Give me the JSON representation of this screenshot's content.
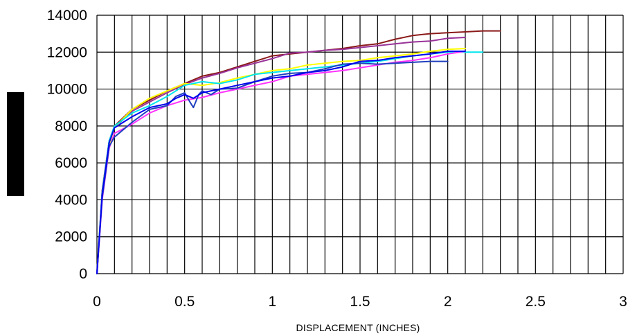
{
  "chart_data": {
    "type": "line",
    "title": "",
    "xlabel": "DISPLACEMENT (INCHES)",
    "ylabel": "",
    "xlim": [
      0,
      3
    ],
    "ylim": [
      0,
      14000
    ],
    "x_ticks": [
      "0",
      "0.5",
      "1",
      "1.5",
      "2",
      "2.5",
      "3"
    ],
    "y_ticks": [
      "0",
      "2000",
      "4000",
      "6000",
      "8000",
      "10000",
      "12000",
      "14000"
    ],
    "x_tick_values": [
      0,
      0.5,
      1,
      1.5,
      2,
      2.5,
      3
    ],
    "y_tick_values": [
      0,
      2000,
      4000,
      6000,
      8000,
      10000,
      12000,
      14000
    ],
    "grid": true,
    "minor_x_step": 0.1,
    "y_axis_label_redacted": true,
    "series": [
      {
        "color": "#8b1a1a",
        "points": [
          [
            0,
            0
          ],
          [
            0.03,
            4500
          ],
          [
            0.07,
            7200
          ],
          [
            0.1,
            8000
          ],
          [
            0.2,
            8900
          ],
          [
            0.3,
            9400
          ],
          [
            0.4,
            9900
          ],
          [
            0.5,
            10300
          ],
          [
            0.6,
            10700
          ],
          [
            0.7,
            10900
          ],
          [
            0.8,
            11200
          ],
          [
            0.9,
            11500
          ],
          [
            1.0,
            11800
          ],
          [
            1.1,
            11900
          ],
          [
            1.2,
            12000
          ],
          [
            1.3,
            12100
          ],
          [
            1.4,
            12200
          ],
          [
            1.5,
            12350
          ],
          [
            1.6,
            12450
          ],
          [
            1.7,
            12700
          ],
          [
            1.8,
            12900
          ],
          [
            1.9,
            13000
          ],
          [
            2.0,
            13050
          ],
          [
            2.1,
            13100
          ],
          [
            2.2,
            13150
          ],
          [
            2.3,
            13150
          ]
        ]
      },
      {
        "color": "#993399",
        "points": [
          [
            0,
            0
          ],
          [
            0.03,
            4200
          ],
          [
            0.07,
            7100
          ],
          [
            0.1,
            7900
          ],
          [
            0.2,
            8800
          ],
          [
            0.3,
            9300
          ],
          [
            0.4,
            9800
          ],
          [
            0.5,
            10250
          ],
          [
            0.6,
            10600
          ],
          [
            0.7,
            10850
          ],
          [
            0.8,
            11150
          ],
          [
            0.9,
            11400
          ],
          [
            1.0,
            11650
          ],
          [
            1.1,
            11950
          ],
          [
            1.2,
            12000
          ],
          [
            1.3,
            12100
          ],
          [
            1.4,
            12150
          ],
          [
            1.5,
            12250
          ],
          [
            1.6,
            12350
          ],
          [
            1.7,
            12450
          ],
          [
            1.8,
            12550
          ],
          [
            1.9,
            12600
          ],
          [
            2.0,
            12750
          ],
          [
            2.1,
            12800
          ]
        ]
      },
      {
        "color": "#ffff00",
        "points": [
          [
            0,
            0
          ],
          [
            0.03,
            4300
          ],
          [
            0.07,
            7000
          ],
          [
            0.1,
            7900
          ],
          [
            0.2,
            8900
          ],
          [
            0.3,
            9500
          ],
          [
            0.4,
            9900
          ],
          [
            0.5,
            10300
          ],
          [
            0.6,
            10200
          ],
          [
            0.7,
            10350
          ],
          [
            0.8,
            10600
          ],
          [
            0.9,
            10800
          ],
          [
            1.0,
            11000
          ],
          [
            1.1,
            11100
          ],
          [
            1.2,
            11300
          ],
          [
            1.3,
            11400
          ],
          [
            1.4,
            11500
          ],
          [
            1.5,
            11550
          ],
          [
            1.6,
            11700
          ],
          [
            1.7,
            11800
          ],
          [
            1.8,
            11900
          ],
          [
            1.9,
            12050
          ],
          [
            2.0,
            12150
          ],
          [
            2.1,
            12200
          ]
        ]
      },
      {
        "color": "#00e5ee",
        "points": [
          [
            0,
            0
          ],
          [
            0.03,
            4400
          ],
          [
            0.07,
            7200
          ],
          [
            0.1,
            8000
          ],
          [
            0.2,
            8700
          ],
          [
            0.3,
            9100
          ],
          [
            0.4,
            9600
          ],
          [
            0.5,
            10200
          ],
          [
            0.6,
            10400
          ],
          [
            0.7,
            10300
          ],
          [
            0.8,
            10500
          ],
          [
            0.9,
            10800
          ],
          [
            1.0,
            10900
          ],
          [
            1.1,
            11000
          ],
          [
            1.2,
            11100
          ],
          [
            1.3,
            11200
          ],
          [
            1.4,
            11300
          ],
          [
            1.5,
            11400
          ],
          [
            1.6,
            11500
          ],
          [
            1.7,
            11650
          ],
          [
            1.8,
            11800
          ],
          [
            1.9,
            11900
          ],
          [
            2.0,
            12000
          ],
          [
            2.1,
            12000
          ],
          [
            2.2,
            12000
          ]
        ]
      },
      {
        "color": "#ff33ff",
        "points": [
          [
            0,
            0
          ],
          [
            0.03,
            4000
          ],
          [
            0.07,
            6800
          ],
          [
            0.1,
            7600
          ],
          [
            0.2,
            8100
          ],
          [
            0.3,
            8700
          ],
          [
            0.4,
            9100
          ],
          [
            0.5,
            9400
          ],
          [
            0.6,
            9550
          ],
          [
            0.7,
            9800
          ],
          [
            0.8,
            10000
          ],
          [
            0.9,
            10200
          ],
          [
            1.0,
            10400
          ],
          [
            1.1,
            10700
          ],
          [
            1.2,
            10800
          ],
          [
            1.3,
            10900
          ],
          [
            1.4,
            11000
          ],
          [
            1.5,
            11150
          ],
          [
            1.6,
            11300
          ],
          [
            1.7,
            11450
          ],
          [
            1.8,
            11550
          ],
          [
            1.9,
            11700
          ],
          [
            2.0,
            11900
          ],
          [
            2.1,
            12050
          ]
        ]
      },
      {
        "color": "#1f3fbf",
        "points": [
          [
            0,
            0
          ],
          [
            0.03,
            4100
          ],
          [
            0.07,
            6900
          ],
          [
            0.1,
            7400
          ],
          [
            0.15,
            7800
          ],
          [
            0.2,
            8200
          ],
          [
            0.3,
            8900
          ],
          [
            0.4,
            9100
          ],
          [
            0.45,
            9600
          ],
          [
            0.5,
            9800
          ],
          [
            0.53,
            9300
          ],
          [
            0.55,
            9000
          ],
          [
            0.58,
            9700
          ],
          [
            0.6,
            9900
          ],
          [
            0.65,
            9700
          ],
          [
            0.7,
            10000
          ],
          [
            0.8,
            10050
          ],
          [
            0.9,
            10400
          ],
          [
            1.0,
            10700
          ],
          [
            1.1,
            10850
          ],
          [
            1.2,
            10900
          ],
          [
            1.3,
            11100
          ],
          [
            1.4,
            11350
          ],
          [
            1.5,
            11400
          ],
          [
            1.6,
            11350
          ],
          [
            1.7,
            11400
          ],
          [
            1.8,
            11450
          ],
          [
            1.9,
            11500
          ],
          [
            2.0,
            11500
          ]
        ]
      },
      {
        "color": "#0000ee",
        "points": [
          [
            0,
            0
          ],
          [
            0.03,
            4300
          ],
          [
            0.07,
            7100
          ],
          [
            0.1,
            7900
          ],
          [
            0.2,
            8500
          ],
          [
            0.3,
            9000
          ],
          [
            0.4,
            9200
          ],
          [
            0.45,
            9500
          ],
          [
            0.5,
            9700
          ],
          [
            0.55,
            9500
          ],
          [
            0.6,
            9800
          ],
          [
            0.7,
            10000
          ],
          [
            0.8,
            10200
          ],
          [
            0.9,
            10400
          ],
          [
            1.0,
            10600
          ],
          [
            1.1,
            10700
          ],
          [
            1.2,
            10900
          ],
          [
            1.3,
            11000
          ],
          [
            1.4,
            11200
          ],
          [
            1.5,
            11500
          ],
          [
            1.6,
            11550
          ],
          [
            1.7,
            11700
          ],
          [
            1.8,
            11800
          ],
          [
            1.9,
            11900
          ],
          [
            2.0,
            12050
          ],
          [
            2.1,
            12050
          ]
        ]
      }
    ]
  }
}
